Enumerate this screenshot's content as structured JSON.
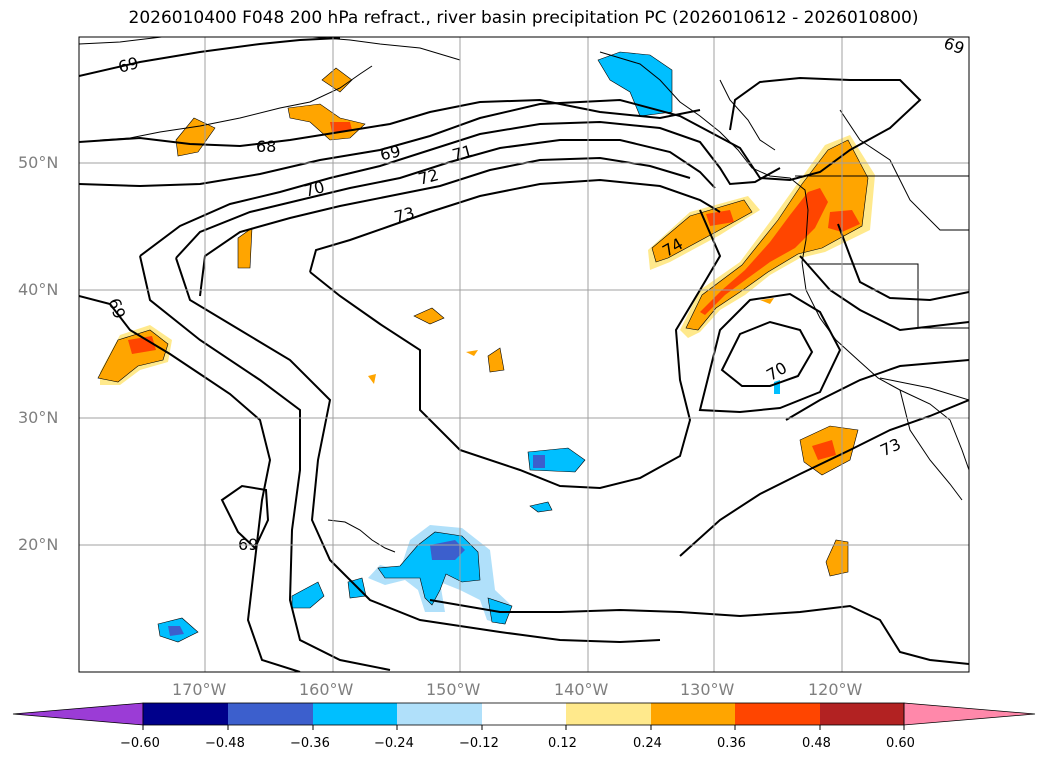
{
  "title": "2026010400 F048 200 hPa refract., river basin precipitation PC (2026010612 - 2026010800)",
  "map": {
    "lat_labels": [
      "50°N",
      "40°N",
      "30°N",
      "20°N"
    ],
    "lon_labels": [
      "170°W",
      "160°W",
      "150°W",
      "140°W",
      "130°W",
      "120°W"
    ],
    "contour_labels": [
      "69",
      "68",
      "69",
      "70",
      "71",
      "72",
      "73",
      "74",
      "69",
      "70",
      "73",
      "69",
      "69"
    ],
    "colors": {
      "neg_070": "#9b3cd6",
      "neg_060": "#00008b",
      "neg_048": "#3c5fcd",
      "neg_036": "#00bfff",
      "neg_024": "#b0e0fa",
      "neutral": "#ffffff",
      "pos_012": "#ffe98c",
      "pos_024": "#ffa500",
      "pos_036": "#ff4500",
      "pos_048": "#b22222",
      "pos_060": "#ff88aa"
    }
  },
  "colorbar": {
    "tick_labels": [
      "−0.60",
      "−0.48",
      "−0.36",
      "−0.24",
      "−0.12",
      "0.12",
      "0.24",
      "0.36",
      "0.48",
      "0.60"
    ]
  }
}
